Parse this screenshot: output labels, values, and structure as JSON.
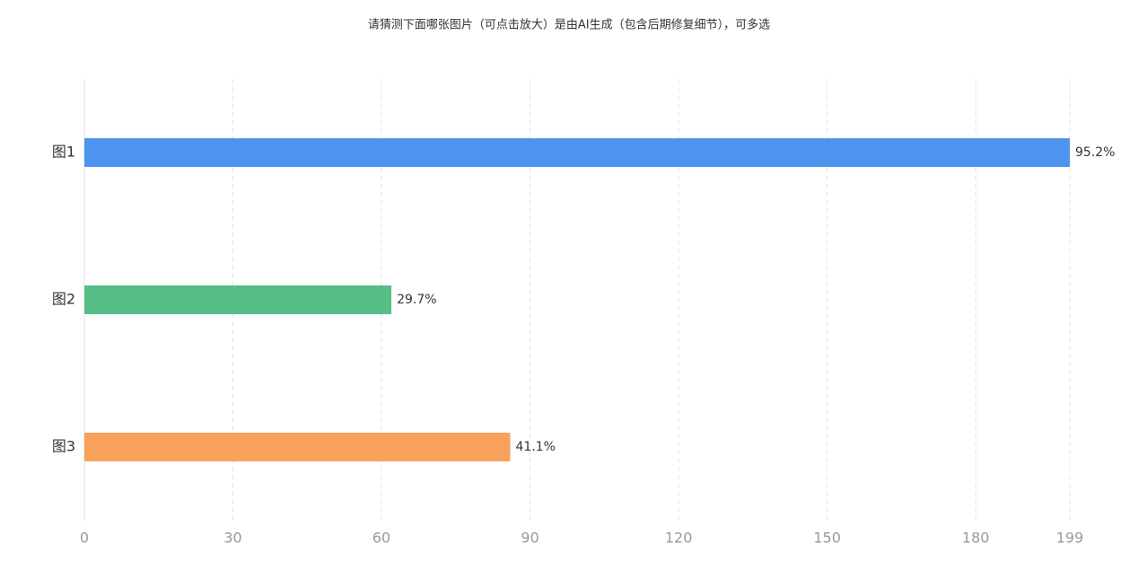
{
  "chart_data": {
    "type": "barh",
    "title": "请猜测下面哪张图片（可点击放大）是由AI生成（包含后期修复细节），可多选",
    "categories": [
      "图1",
      "图2",
      "图3"
    ],
    "values": [
      199,
      62,
      86
    ],
    "value_labels": [
      "95.2%",
      "29.7%",
      "41.1%"
    ],
    "colors": [
      "#4e94ee",
      "#55bd86",
      "#f7a15b"
    ],
    "xlim": [
      0,
      199
    ],
    "xticks": [
      0,
      30,
      60,
      90,
      120,
      150,
      180,
      199
    ],
    "grid": true
  }
}
